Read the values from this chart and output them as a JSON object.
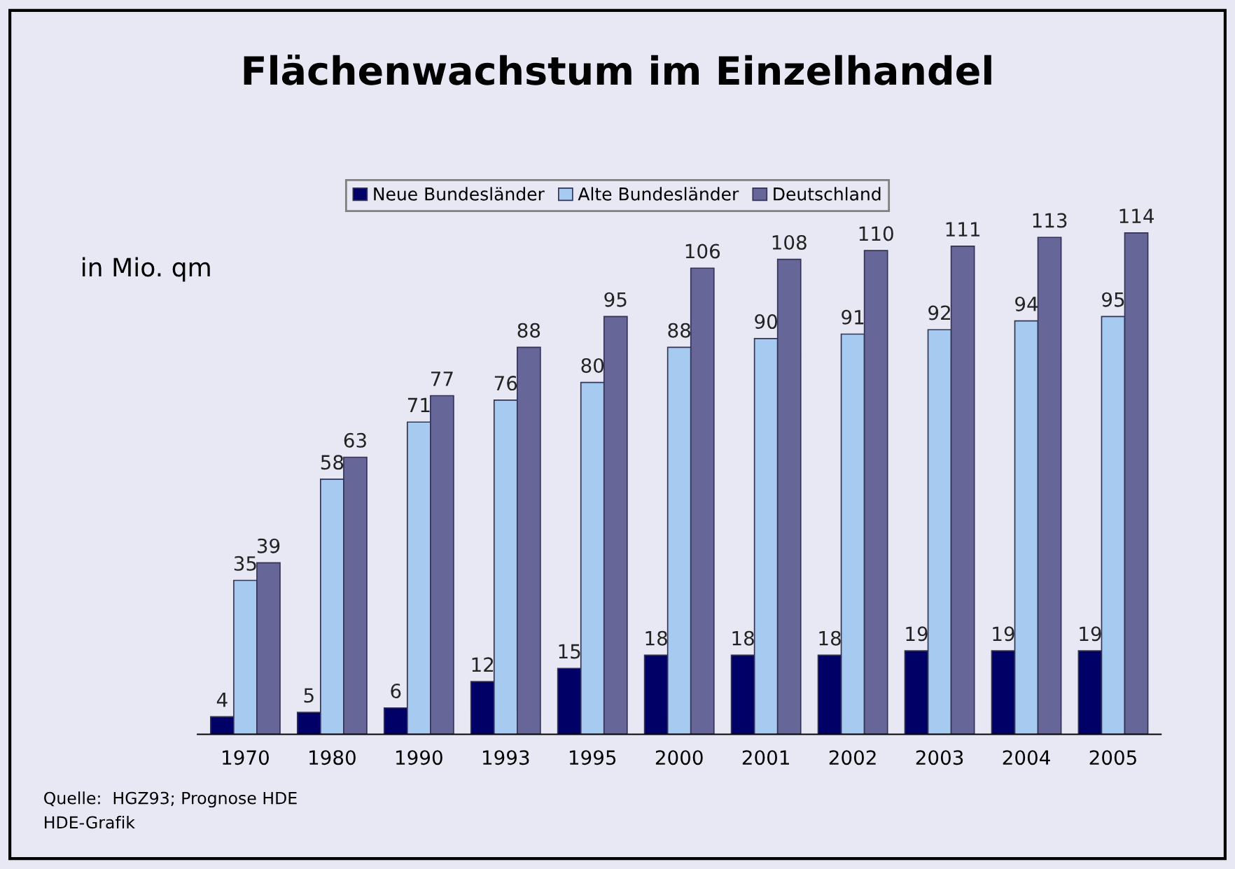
{
  "chart_data": {
    "type": "bar",
    "title": "Flächenwachstum im Einzelhandel",
    "ylabel": "in Mio. qm",
    "categories": [
      "1970",
      "1980",
      "1990",
      "1993",
      "1995",
      "2000",
      "2001",
      "2002",
      "2003",
      "2004",
      "2005"
    ],
    "series": [
      {
        "name": "Neue Bundesländer",
        "color": "#000066",
        "values": [
          4,
          5,
          6,
          12,
          15,
          18,
          18,
          18,
          19,
          19,
          19
        ]
      },
      {
        "name": "Alte Bundesländer",
        "color": "#a6caf0",
        "values": [
          35,
          58,
          71,
          76,
          80,
          88,
          90,
          91,
          92,
          94,
          95
        ]
      },
      {
        "name": "Deutschland",
        "color": "#666699",
        "values": [
          39,
          63,
          77,
          88,
          95,
          106,
          108,
          110,
          111,
          113,
          114
        ]
      }
    ],
    "data_labels": true,
    "legend": "top",
    "grid": false,
    "annotations": [
      "Quelle:  HGZ93; Prognose HDE",
      "HDE-Grafik"
    ]
  }
}
